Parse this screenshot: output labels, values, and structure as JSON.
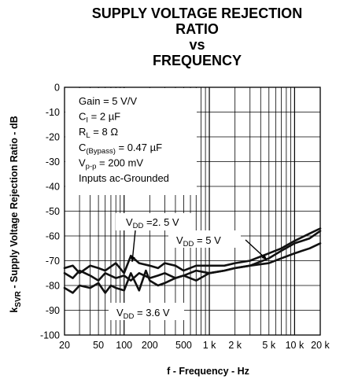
{
  "title": {
    "line1": "SUPPLY VOLTAGE REJECTION",
    "line2": "RATIO",
    "line3": "vs",
    "line4": "FREQUENCY"
  },
  "chart_data": {
    "type": "line",
    "xlabel": "f - Frequency - Hz",
    "ylabel_main": "k",
    "ylabel_sub": "SVR",
    "ylabel_rest": " - Supply Voltage Rejection Ratio - dB",
    "xscale": "log",
    "xlim": [
      20,
      20000
    ],
    "ylim": [
      -100,
      0
    ],
    "grid": true,
    "x_tick_values": [
      20,
      50,
      100,
      200,
      500,
      1000,
      2000,
      5000,
      10000,
      20000
    ],
    "x_tick_labels": [
      "20",
      "50",
      "100",
      "200",
      "500",
      "1 k",
      "2 k",
      "5 k",
      "10 k",
      "20 k"
    ],
    "y_tick_values": [
      0,
      -10,
      -20,
      -30,
      -40,
      -50,
      -60,
      -70,
      -80,
      -90,
      -100
    ],
    "y_tick_labels": [
      "0",
      "-10",
      "-20",
      "-30",
      "-40",
      "-50",
      "-60",
      "-70",
      "-80",
      "-90",
      "-100"
    ],
    "conditions": [
      {
        "type": "plain",
        "text": "Gain = 5 V/V"
      },
      {
        "type": "sub",
        "pre": "C",
        "sub": "I",
        "post": " = 2 µF"
      },
      {
        "type": "sub",
        "pre": "R",
        "sub": "L",
        "post": " = 8 Ω"
      },
      {
        "type": "sub",
        "pre": "C",
        "sub": "(Bypass)",
        "post": " = 0.47 µF"
      },
      {
        "type": "sub",
        "pre": "V",
        "sub": "p-p",
        "post": " = 200 mV"
      },
      {
        "type": "plain",
        "text": "Inputs ac-Grounded"
      }
    ],
    "series": [
      {
        "name": "VDD = 2.5 V",
        "label_pre": "V",
        "label_sub": "DD",
        "label_post": " =2. 5 V",
        "x": [
          20,
          25,
          30,
          40,
          50,
          60,
          80,
          100,
          120,
          150,
          200,
          250,
          300,
          400,
          500,
          700,
          1000,
          1500,
          2000,
          3000,
          5000,
          7000,
          10000,
          15000,
          20000
        ],
        "y": [
          -73,
          -72,
          -75,
          -72,
          -73,
          -74,
          -71,
          -75,
          -68,
          -71,
          -72,
          -73,
          -71,
          -72,
          -74,
          -72,
          -72,
          -72,
          -71,
          -70,
          -67,
          -65,
          -62,
          -59,
          -57
        ]
      },
      {
        "name": "VDD = 5 V",
        "label_pre": "V",
        "label_sub": "DD",
        "label_post": " = 5 V",
        "x": [
          20,
          25,
          30,
          40,
          50,
          60,
          80,
          100,
          120,
          150,
          200,
          250,
          300,
          400,
          500,
          700,
          1000,
          1500,
          2000,
          3000,
          5000,
          7000,
          10000,
          15000,
          20000
        ],
        "y": [
          -75,
          -77,
          -74,
          -76,
          -78,
          -75,
          -77,
          -76,
          -78,
          -75,
          -77,
          -76,
          -75,
          -77,
          -76,
          -74,
          -75,
          -74,
          -73,
          -72,
          -71,
          -69,
          -67,
          -65,
          -63
        ]
      },
      {
        "name": "VDD = 3.6 V",
        "label_pre": "V",
        "label_sub": "DD",
        "label_post": " = 3.6 V",
        "x": [
          20,
          25,
          30,
          40,
          50,
          60,
          70,
          80,
          100,
          120,
          150,
          180,
          200,
          250,
          300,
          400,
          500,
          700,
          1000,
          1500,
          2000,
          3000,
          5000,
          7000,
          10000,
          15000,
          20000
        ],
        "y": [
          -81,
          -83,
          -80,
          -81,
          -79,
          -83,
          -80,
          -81,
          -82,
          -75,
          -82,
          -74,
          -78,
          -80,
          -79,
          -77,
          -76,
          -78,
          -75,
          -74,
          -73,
          -72,
          -69,
          -66,
          -63,
          -61,
          -58
        ]
      }
    ]
  }
}
